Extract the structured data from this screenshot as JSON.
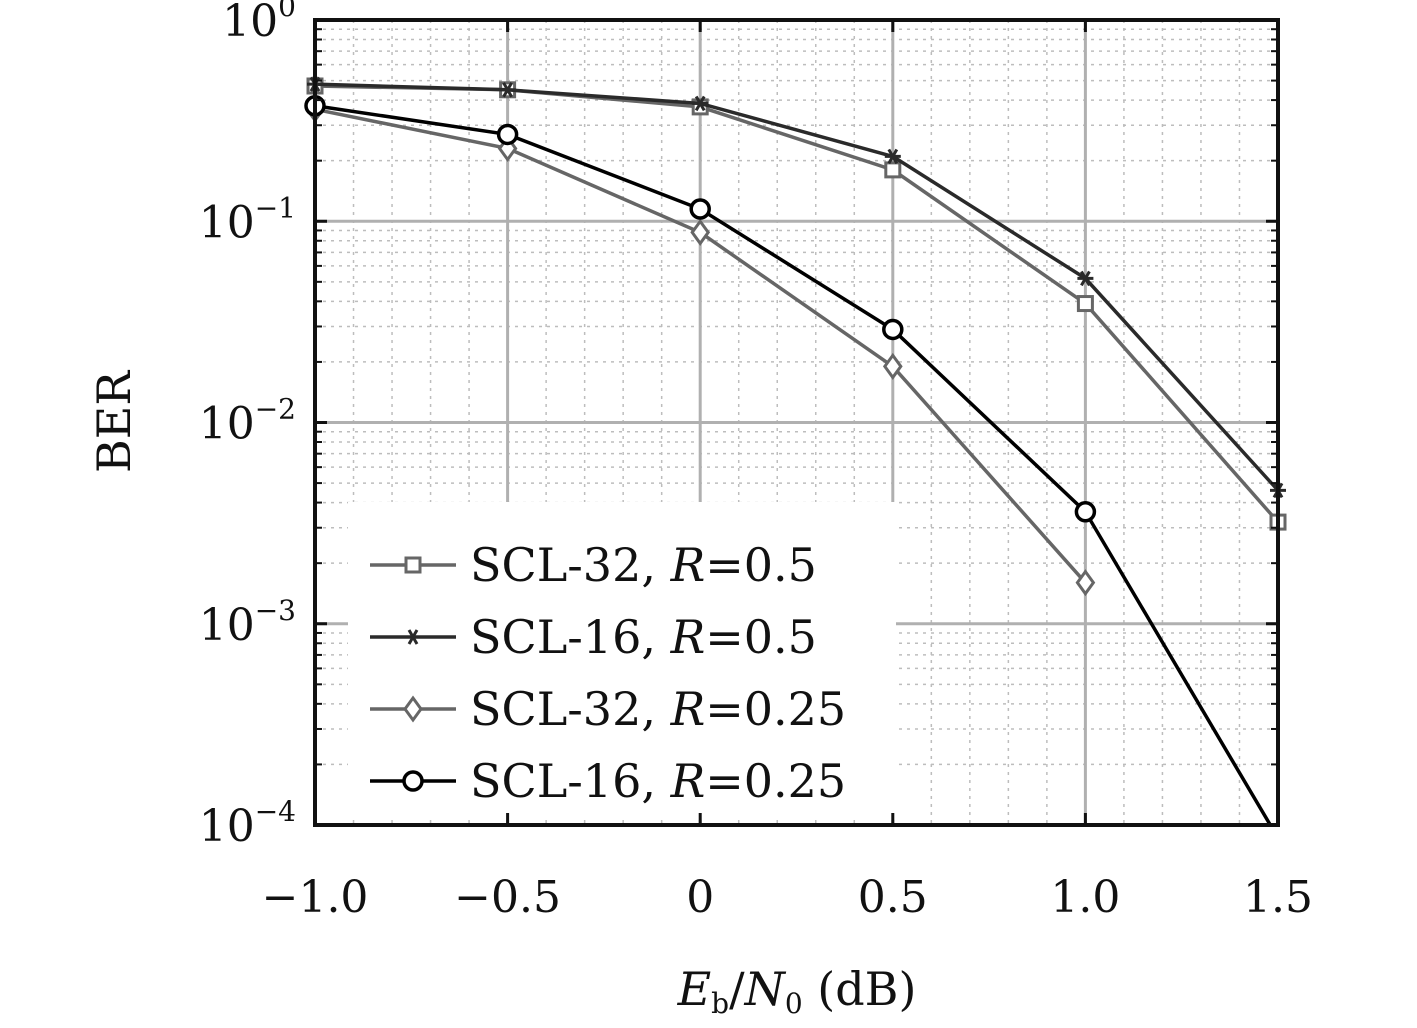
{
  "chart_data": {
    "type": "line",
    "xlabel": {
      "main": "E",
      "sub": "b",
      "slash": "/",
      "main2": "N",
      "sub2": "0",
      "unit": " (dB)"
    },
    "ylabel": "BER",
    "y_scale": "log",
    "xlim": [
      -1.0,
      1.5
    ],
    "ylim": [
      0.0001,
      1
    ],
    "x_ticks": [
      {
        "value": -1.0,
        "label": "−1.0"
      },
      {
        "value": -0.5,
        "label": "−0.5"
      },
      {
        "value": 0.0,
        "label": "0"
      },
      {
        "value": 0.5,
        "label": "0.5"
      },
      {
        "value": 1.0,
        "label": "1.0"
      },
      {
        "value": 1.5,
        "label": "1.5"
      }
    ],
    "y_ticks": [
      {
        "value": 1,
        "base": "10",
        "exp": "0"
      },
      {
        "value": 0.1,
        "base": "10",
        "exp": "−1"
      },
      {
        "value": 0.01,
        "base": "10",
        "exp": "−2"
      },
      {
        "value": 0.001,
        "base": "10",
        "exp": "−3"
      },
      {
        "value": 0.0001,
        "base": "10",
        "exp": "−4"
      }
    ],
    "grid": true,
    "legend_position": "bottom-left",
    "series": [
      {
        "name": "SCL-32, R=0.5",
        "label": {
          "prefix": "SCL-32, ",
          "var": "R",
          "suffix": "=0.5"
        },
        "marker": "square",
        "color": "#666666",
        "x": [
          -1.0,
          -0.5,
          0.0,
          0.5,
          1.0,
          1.5
        ],
        "y": [
          0.47,
          0.45,
          0.37,
          0.18,
          0.039,
          0.0032
        ]
      },
      {
        "name": "SCL-16, R=0.5",
        "label": {
          "prefix": "SCL-16, ",
          "var": "R",
          "suffix": "=0.5"
        },
        "marker": "asterisk",
        "color": "#2a2a2a",
        "x": [
          -1.0,
          -0.5,
          0.0,
          0.5,
          1.0,
          1.5
        ],
        "y": [
          0.48,
          0.45,
          0.385,
          0.21,
          0.052,
          0.0046
        ]
      },
      {
        "name": "SCL-32, R=0.25",
        "label": {
          "prefix": "SCL-32, ",
          "var": "R",
          "suffix": "=0.25"
        },
        "marker": "diamond",
        "color": "#666666",
        "x": [
          -1.0,
          -0.5,
          0.0,
          0.5,
          1.0
        ],
        "y": [
          0.36,
          0.23,
          0.088,
          0.019,
          0.0016
        ]
      },
      {
        "name": "SCL-16, R=0.25",
        "label": {
          "prefix": "SCL-16, ",
          "var": "R",
          "suffix": "=0.25"
        },
        "marker": "circle",
        "color": "#000000",
        "x": [
          -1.0,
          -0.5,
          0.0,
          0.5,
          1.0,
          1.48
        ],
        "y": [
          0.375,
          0.27,
          0.115,
          0.029,
          0.0036,
          0.0001
        ]
      }
    ]
  }
}
